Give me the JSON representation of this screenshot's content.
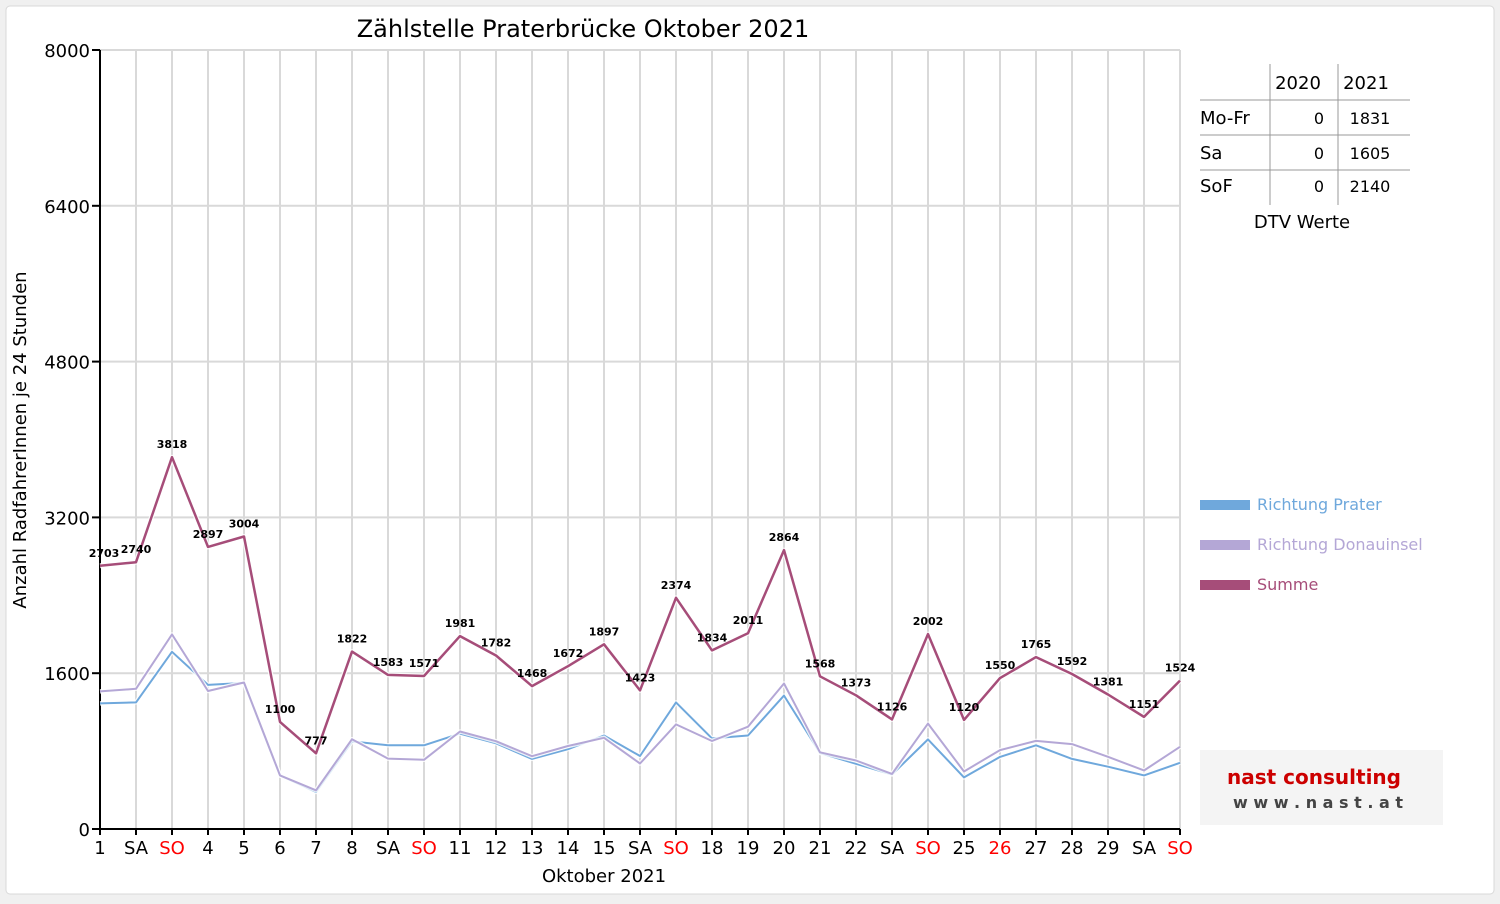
{
  "chart_data": {
    "type": "line",
    "title": "Zählstelle Praterbrücke Oktober 2021",
    "xlabel": "Oktober 2021",
    "ylabel": "Anzahl RadfahrerInnen je 24 Stunden",
    "ylim": [
      0,
      8000
    ],
    "yticks": [
      0,
      1600,
      3200,
      4800,
      6400,
      8000
    ],
    "grid": true,
    "legend_position": "right",
    "categories": [
      "1",
      "SA",
      "SO",
      "4",
      "5",
      "6",
      "7",
      "8",
      "SA",
      "SO",
      "11",
      "12",
      "13",
      "14",
      "15",
      "SA",
      "SO",
      "18",
      "19",
      "20",
      "21",
      "22",
      "SA",
      "SO",
      "25",
      "26",
      "27",
      "28",
      "29",
      "SA",
      "SO"
    ],
    "category_colors": [
      "#000000",
      "#000000",
      "#ff0000",
      "#000000",
      "#000000",
      "#000000",
      "#000000",
      "#000000",
      "#000000",
      "#ff0000",
      "#000000",
      "#000000",
      "#000000",
      "#000000",
      "#000000",
      "#000000",
      "#ff0000",
      "#000000",
      "#000000",
      "#000000",
      "#000000",
      "#000000",
      "#000000",
      "#ff0000",
      "#000000",
      "#ff0000",
      "#000000",
      "#000000",
      "#000000",
      "#000000",
      "#ff0000"
    ],
    "series": [
      {
        "name": "Richtung Prater",
        "color": "#6fa8dc",
        "values": [
          1290,
          1300,
          1820,
          1480,
          1500,
          550,
          380,
          900,
          860,
          860,
          980,
          880,
          720,
          820,
          960,
          750,
          1300,
          930,
          960,
          1370,
          780,
          670,
          560,
          920,
          530,
          740,
          860,
          720,
          640,
          550,
          680
        ],
        "labeled": false
      },
      {
        "name": "Richtung Donauinsel",
        "color": "#b4a7d6",
        "values": [
          1413,
          1440,
          1998,
          1417,
          1504,
          550,
          397,
          922,
          723,
          711,
          1001,
          902,
          748,
          852,
          937,
          673,
          1074,
          904,
          1051,
          1494,
          788,
          703,
          566,
          1082,
          590,
          810,
          905,
          872,
          741,
          601,
          844
        ],
        "labeled": false
      },
      {
        "name": "Summe",
        "color": "#a64d79",
        "values": [
          2703,
          2740,
          3818,
          2897,
          3004,
          1100,
          777,
          1822,
          1583,
          1571,
          1981,
          1782,
          1468,
          1672,
          1897,
          1423,
          2374,
          1834,
          2011,
          2864,
          1568,
          1373,
          1126,
          2002,
          1120,
          1550,
          1765,
          1592,
          1381,
          1151,
          1524
        ],
        "labeled": true
      }
    ],
    "dtv_table": {
      "columns": [
        "",
        "2020",
        "2021"
      ],
      "rows": [
        {
          "label": "Mo-Fr",
          "v2020": "0",
          "v2021": "1831"
        },
        {
          "label": "Sa",
          "v2020": "0",
          "v2021": "1605"
        },
        {
          "label": "SoF",
          "v2020": "0",
          "v2021": "2140"
        }
      ],
      "caption": "DTV Werte"
    }
  },
  "logo": {
    "brand": "nast consulting",
    "url": "w w w . n a s t . a t",
    "color_nast": "#cc0000",
    "color_consulting": "#555555"
  }
}
